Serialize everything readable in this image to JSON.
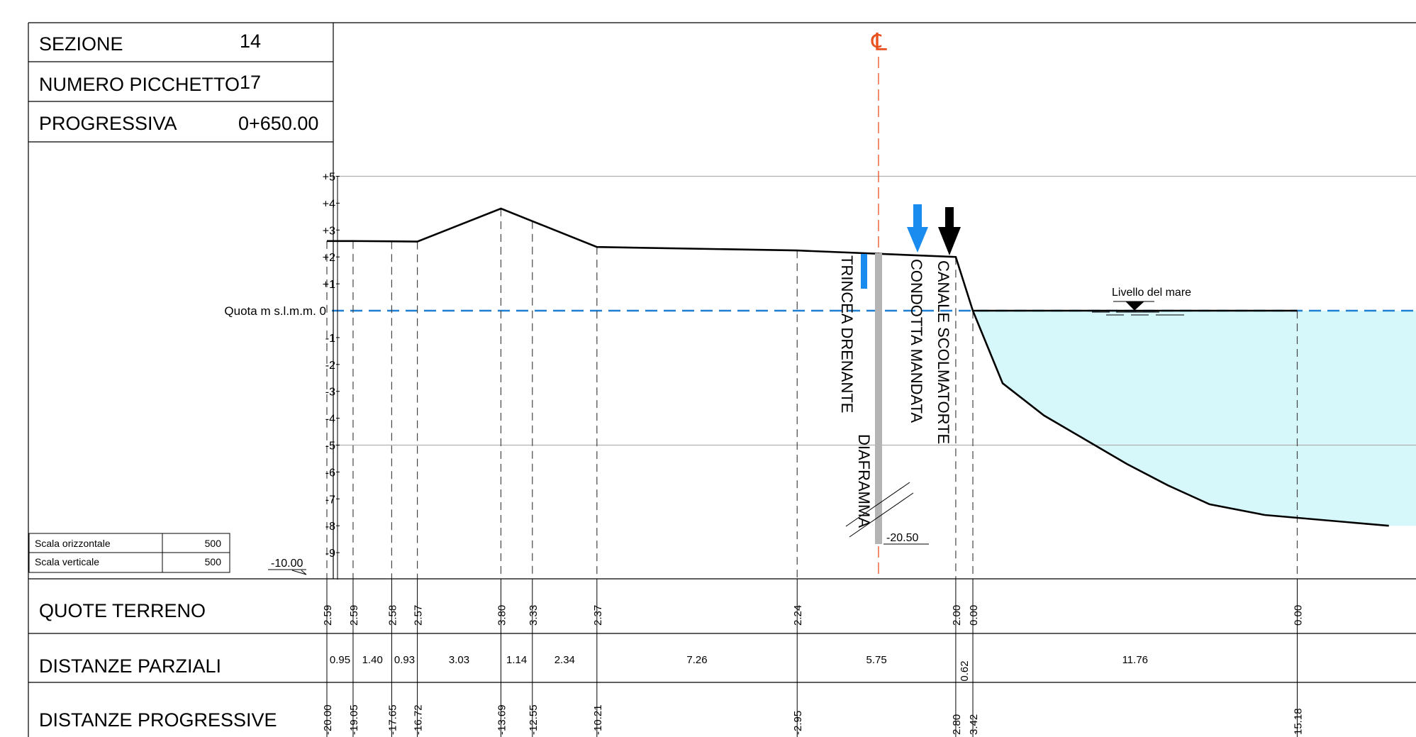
{
  "header": {
    "sezione_label": "SEZIONE",
    "sezione_value": "14",
    "picchetto_label": "NUMERO PICCHETTO",
    "picchetto_value": "17",
    "progressiva_label": "PROGRESSIVA",
    "progressiva_value": "0+650.00"
  },
  "scale": {
    "orizzontale_label": "Scala orizzontale",
    "orizzontale_value": "500",
    "verticale_label": "Scala verticale",
    "verticale_value": "500"
  },
  "datum": {
    "label": "Quota m s.l.m.m. 0",
    "bottom_value": "-10.00"
  },
  "axis_ticks": [
    "+5",
    "+4",
    "+3",
    "+2",
    "+1",
    "-1",
    "-2",
    "-3",
    "-4",
    "-5",
    "-6",
    "-7",
    "-8",
    "-9"
  ],
  "centerline_symbol": "℄",
  "sea_label": "Livello del mare",
  "annotations": {
    "trincea": "TRINCEA DRENANTE",
    "condotta": "CONDOTTA MANDATA",
    "canale": "CANALE SCOLMATORTE",
    "diaframma": "DIAFRAMMA",
    "diaframma_depth": "-20.50"
  },
  "rows": {
    "quote_label": "QUOTE TERRENO",
    "parziali_label": "DISTANZE PARZIALI",
    "progressive_label": "DISTANZE PROGRESSIVE"
  },
  "chart_data": {
    "type": "line",
    "profile": [
      {
        "distance": -20.0,
        "elevation": 2.59
      },
      {
        "distance": -19.05,
        "elevation": 2.59
      },
      {
        "distance": -17.65,
        "elevation": 2.58
      },
      {
        "distance": -16.72,
        "elevation": 2.57
      },
      {
        "distance": -13.69,
        "elevation": 3.8
      },
      {
        "distance": -12.55,
        "elevation": 3.33
      },
      {
        "distance": -10.21,
        "elevation": 2.37
      },
      {
        "distance": -2.95,
        "elevation": 2.24
      },
      {
        "distance": 2.8,
        "elevation": 2.0
      },
      {
        "distance": 3.42,
        "elevation": 0.0
      },
      {
        "distance": 15.18,
        "elevation": 0.0
      }
    ],
    "quote_terreno": [
      "2.59",
      "2.59",
      "2.58",
      "2.57",
      "3.80",
      "3.33",
      "2.37",
      "2.24",
      "2.00",
      "0.00",
      "0.00"
    ],
    "distanze_progressive": [
      "-20.00",
      "-19.05",
      "-17.65",
      "-16.72",
      "-13.69",
      "-12.55",
      "-10.21",
      "-2.95",
      "2.80",
      "3.42",
      "15.18"
    ],
    "distanze_parziali": [
      "0.95",
      "1.40",
      "0.93",
      "3.03",
      "1.14",
      "2.34",
      "7.26",
      "5.75",
      "0.62",
      "11.76"
    ],
    "seabed": [
      {
        "distance": 3.42,
        "elevation": 0.0
      },
      {
        "distance": 4.5,
        "elevation": -2.7
      },
      {
        "distance": 6.0,
        "elevation": -3.9
      },
      {
        "distance": 7.5,
        "elevation": -4.8
      },
      {
        "distance": 9.0,
        "elevation": -5.7
      },
      {
        "distance": 10.5,
        "elevation": -6.5
      },
      {
        "distance": 12.0,
        "elevation": -7.2
      },
      {
        "distance": 14.0,
        "elevation": -7.6
      },
      {
        "distance": 18.5,
        "elevation": -8.0
      }
    ],
    "ylim": [
      -10,
      5
    ],
    "colors": {
      "profile": "#000000",
      "water_fill": "#d7f8fb",
      "water_line": "#1f7fd0",
      "centerline": "#e8501e",
      "arrow_blue": "#1a8cf0",
      "arrow_black": "#000000",
      "trincea": "#1a8cf0",
      "diaframma": "#b4b4b4",
      "grid": "#b0b0b0"
    }
  }
}
